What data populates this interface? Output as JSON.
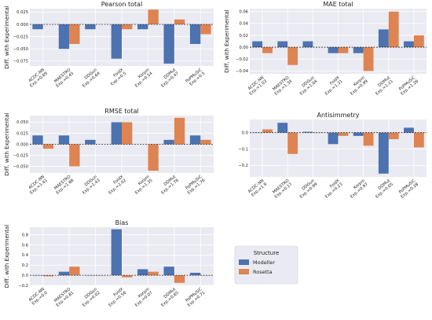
{
  "colors": {
    "modeller": "#4c72b0",
    "rosetta": "#dd8452",
    "background": "#eaeaf2",
    "grid": "#ffffff"
  },
  "legend": {
    "title": "Structure",
    "entries": [
      "Modeller",
      "Rosetta"
    ]
  },
  "chart_data": [
    {
      "type": "bar",
      "title": "Pearson total",
      "ylabel": "Diff. with Experimental",
      "ylim": [
        -0.085,
        0.032
      ],
      "yticks": [
        -0.075,
        -0.05,
        -0.025,
        0,
        0.025
      ],
      "ytick_labels": [
        "−0.075",
        "−0.050",
        "−0.025",
        "0.000",
        "0.025"
      ],
      "categories": [
        "ACDC-NN\nExp.=0.69",
        "MAESTRO\nExp.=0.45",
        "DDGun\nExp.=0.64",
        "FoldX\nExp.=0.5",
        "Korpm\nExp.=0.54",
        "DDMut\nExp.=0.47",
        "PoPMuSiC\nExp.=0.5"
      ],
      "series": [
        {
          "name": "Modeller",
          "values": [
            -0.01,
            -0.05,
            -0.01,
            -0.07,
            -0.01,
            -0.08,
            -0.04
          ]
        },
        {
          "name": "Rosetta",
          "values": [
            null,
            -0.04,
            null,
            -0.01,
            0.03,
            0.01,
            -0.02
          ]
        }
      ]
    },
    {
      "type": "bar",
      "title": "MAE total",
      "ylabel": "Diff. with Experimental",
      "ylim": [
        -0.045,
        0.065
      ],
      "yticks": [
        -0.04,
        -0.02,
        0,
        0.02,
        0.04,
        0.06
      ],
      "ytick_labels": [
        "−0.04",
        "−0.02",
        "0.00",
        "0.02",
        "0.04",
        "0.06"
      ],
      "categories": [
        "ACDC-NN\nExp.=1.03",
        "MAESTRO\nExp.=1.34",
        "DDGun\nExp.=1.04",
        "FoldX\nExp.=1.31",
        "Korpm\nExp.=0.99",
        "DDMut\nExp.=1.21",
        "PoPMuSiC\nExp.=1.26"
      ],
      "series": [
        {
          "name": "Modeller",
          "values": [
            0.01,
            0.01,
            0.01,
            -0.01,
            -0.01,
            0.03,
            0.01
          ]
        },
        {
          "name": "Rosetta",
          "values": [
            -0.01,
            -0.03,
            null,
            -0.01,
            -0.04,
            0.06,
            0.02
          ]
        }
      ]
    },
    {
      "type": "bar",
      "title": "RMSE total",
      "ylabel": "Diff. with Experimental",
      "ylim": [
        -0.065,
        0.065
      ],
      "yticks": [
        -0.05,
        -0.025,
        0,
        0.025,
        0.05
      ],
      "ytick_labels": [
        "−0.050",
        "−0.025",
        "0.000",
        "0.025",
        "0.050"
      ],
      "categories": [
        "ACDC-NN\nExp.=1.41",
        "MAESTRO\nExp.=1.86",
        "DDGun\nExp.=1.43",
        "FoldX\nExp.=2.02",
        "Korpm\nExp.=1.35",
        "DDMut\nExp.=1.76",
        "PoPMuSiC\nExp.=1.76"
      ],
      "series": [
        {
          "name": "Modeller",
          "values": [
            0.02,
            0.02,
            0.01,
            0.05,
            null,
            0.01,
            0.02
          ]
        },
        {
          "name": "Rosetta",
          "values": [
            -0.01,
            -0.05,
            null,
            0.05,
            -0.06,
            0.06,
            0.01
          ]
        }
      ]
    },
    {
      "type": "bar",
      "title": "Antisimmetry",
      "ylabel": "",
      "ylim": [
        -0.27,
        0.08
      ],
      "yticks": [
        -0.2,
        -0.1,
        0
      ],
      "ytick_labels": [
        "−0.2",
        "−0.1",
        "0.0"
      ],
      "categories": [
        "ACDC-NN\nExp.=1.9",
        "MAESTRO\nExp.=0.17",
        "DDGun\nExp.=0.99",
        "FoldX\nExp.=0.23",
        "Korpm\nExp.=0.97",
        "DDMut\nExp.=0.05",
        "PoPMuSiC\nExp.=0.28"
      ],
      "series": [
        {
          "name": "Modeller",
          "values": [
            0.0,
            0.06,
            0.005,
            -0.07,
            -0.02,
            -0.25,
            0.03
          ]
        },
        {
          "name": "Rosetta",
          "values": [
            0.02,
            -0.13,
            0.0,
            -0.02,
            -0.08,
            -0.04,
            -0.09
          ]
        }
      ]
    },
    {
      "type": "bar",
      "title": "Bias",
      "ylabel": "Diff. with Experimental",
      "ylim": [
        -0.2,
        0.95
      ],
      "yticks": [
        -0.2,
        0,
        0.2,
        0.4,
        0.6,
        0.8
      ],
      "ytick_labels": [
        "−0.2",
        "0.0",
        "0.2",
        "0.4",
        "0.6",
        "0.8"
      ],
      "categories": [
        "ACDC-NN\nExp.=0.0",
        "MAESTRO\nExp.=0.81",
        "DDGun\nExp.=0.02",
        "FoldX\nExp.=0.56",
        "Korpm\nExp.=0.07",
        "DDMut\nExp.=0.65",
        "PoPMuSiC\nExp.=0.71"
      ],
      "series": [
        {
          "name": "Modeller",
          "values": [
            0.0,
            0.07,
            0.0,
            0.91,
            0.12,
            0.17,
            0.05
          ]
        },
        {
          "name": "Rosetta",
          "values": [
            -0.02,
            0.17,
            0.0,
            -0.04,
            0.07,
            -0.15,
            0.0
          ]
        }
      ]
    }
  ]
}
